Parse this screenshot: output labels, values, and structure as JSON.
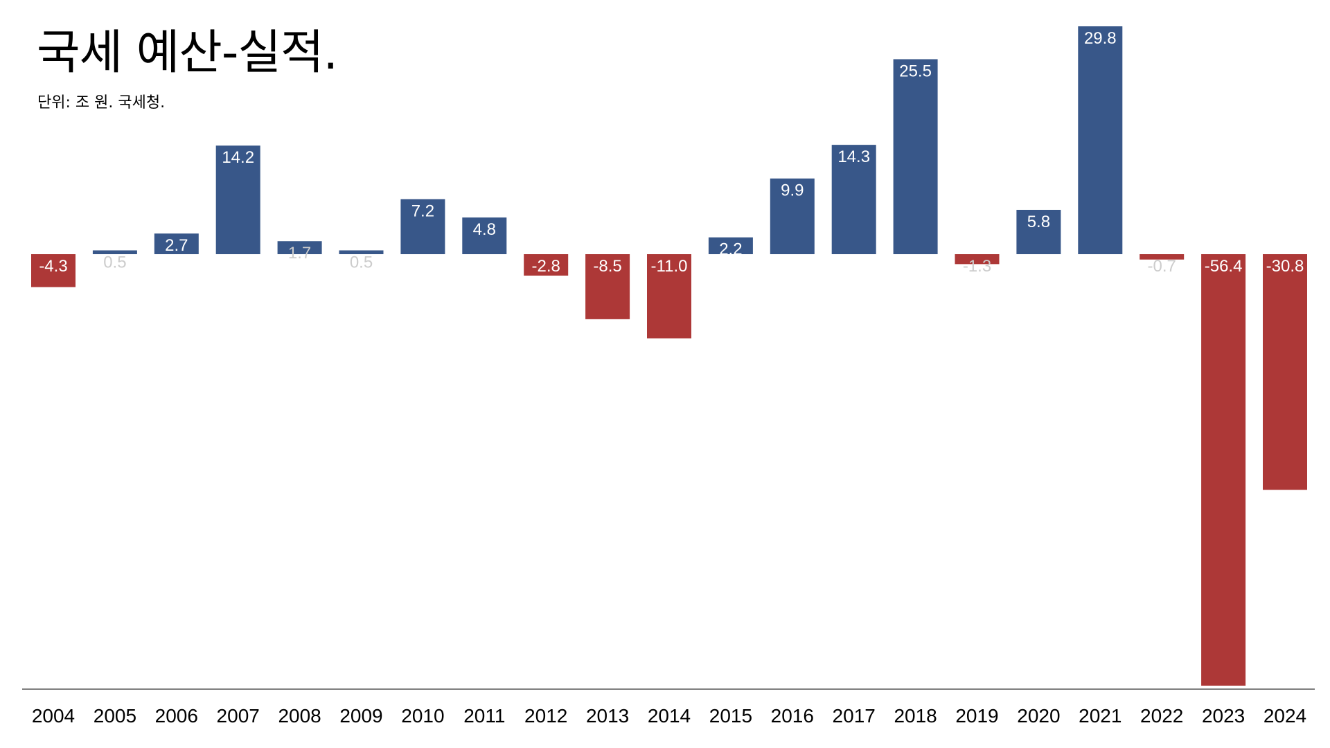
{
  "chart_data": {
    "type": "bar",
    "title": "국세 예산-실적.",
    "subtitle": "단위: 조 원. 국세청.",
    "xlabel": "",
    "ylabel": "",
    "categories": [
      "2004",
      "2005",
      "2006",
      "2007",
      "2008",
      "2009",
      "2010",
      "2011",
      "2012",
      "2013",
      "2014",
      "2015",
      "2016",
      "2017",
      "2018",
      "2019",
      "2020",
      "2021",
      "2022",
      "2023",
      "2024"
    ],
    "values": [
      -4.3,
      0.5,
      2.7,
      14.2,
      1.7,
      0.5,
      7.2,
      4.8,
      -2.8,
      -8.5,
      -11.0,
      2.2,
      9.9,
      14.3,
      25.5,
      -1.3,
      5.8,
      29.8,
      -0.7,
      -56.4,
      -30.8
    ],
    "value_labels": [
      "-4.3",
      "0.5",
      "2.7",
      "14.2",
      "1.7",
      "0.5",
      "7.2",
      "4.8",
      "-2.8",
      "-8.5",
      "-11.0",
      "2.2",
      "9.9",
      "14.3",
      "25.5",
      "-1.3",
      "5.8",
      "29.8",
      "-0.7",
      "-56.4",
      "-30.8"
    ],
    "ylim": [
      -56.4,
      29.8
    ],
    "grid": false,
    "legend": "none",
    "colors": {
      "positive": "#385789",
      "negative": "#ad3837",
      "label_on_bar": "#ffffff",
      "label_faint": "#cccccc",
      "axis": "#555555"
    }
  }
}
